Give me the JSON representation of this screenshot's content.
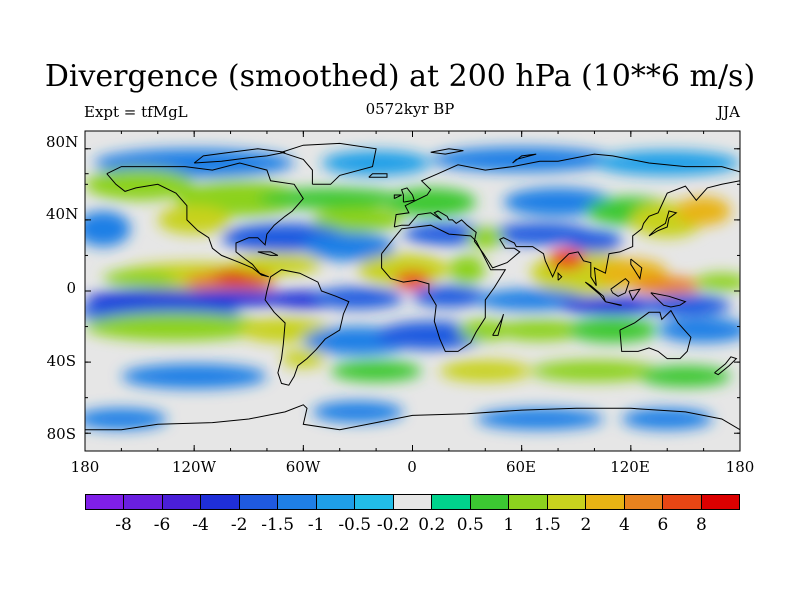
{
  "title": "Divergence (smoothed) at 200 hPa (10**6 m/s)",
  "left_label": "Expt = tfMgL",
  "center_label": "0572kyr BP",
  "right_label": "JJA",
  "chart_data": {
    "type": "heatmap",
    "title": "Divergence (smoothed) at 200 hPa (10**6 m/s)",
    "projection": "cylindrical equidistant",
    "lon_range": [
      -180,
      180
    ],
    "lat_range": [
      -90,
      90
    ],
    "x_ticks": [
      "180",
      "120W",
      "60W",
      "0",
      "60E",
      "120E",
      "180"
    ],
    "y_ticks": [
      "80N",
      "40N",
      "0",
      "40S",
      "80S"
    ],
    "colorbar_levels": [
      "-8",
      "-6",
      "-4",
      "-2",
      "-1.5",
      "-1",
      "-0.5",
      "-0.2",
      "0.2",
      "0.5",
      "1",
      "1.5",
      "2",
      "4",
      "6",
      "8"
    ],
    "colorbar_colors": [
      "#7f1fe8",
      "#6a1fe0",
      "#4a1fd8",
      "#1f2fd8",
      "#1f5ae0",
      "#1f7fe6",
      "#1f9fe8",
      "#22bde8",
      "#e6e6e6",
      "#00d28c",
      "#3cc832",
      "#8cd21e",
      "#c8d21e",
      "#e8b414",
      "#e8821e",
      "#e84614",
      "#dc0000"
    ],
    "missing_color": "#e6e6e6",
    "grid": false
  }
}
